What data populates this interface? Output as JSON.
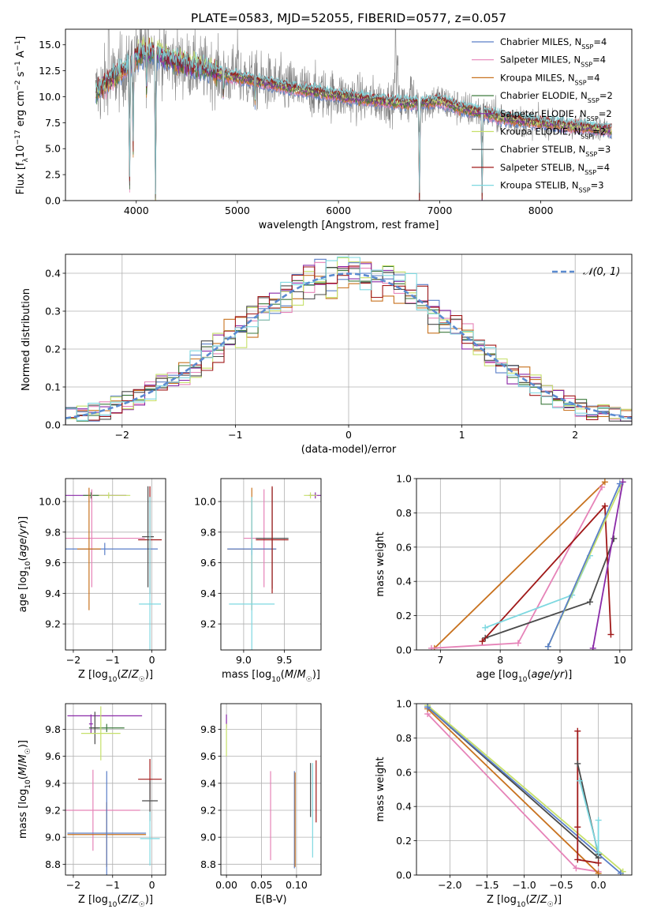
{
  "title": "PLATE=0583, MJD=52055, FIBERID=0577, z=0.057",
  "colors": {
    "chabrier_miles": "#5a7fc8",
    "salpeter_miles": "#e683b8",
    "kroupa_miles": "#c8721f",
    "chabrier_elodie": "#3d7a3d",
    "salpeter_elodie": "#8a2aa8",
    "kroupa_elodie": "#c6e06a",
    "chabrier_stelib": "#4a4a4a",
    "salpeter_stelib": "#a01818",
    "kroupa_stelib": "#7ed8e0",
    "data_spectrum": "#808080",
    "normal_curve": "#5b8bd0",
    "grid": "#b0b0b0"
  },
  "chart_data": [
    {
      "id": "spectrum",
      "type": "line",
      "title": "PLATE=0583, MJD=52055, FIBERID=0577, z=0.057",
      "xlabel": "wavelength [Angstrom, rest frame]",
      "ylabel_parts": [
        "Flux [f",
        "λ",
        "10",
        "−17",
        " erg cm",
        "−2",
        " s",
        "−1",
        " A",
        "−1",
        "]"
      ],
      "xlim": [
        3300,
        8900
      ],
      "ylim": [
        0,
        16.5
      ],
      "xticks": [
        4000,
        5000,
        6000,
        7000,
        8000
      ],
      "yticks": [
        0.0,
        2.5,
        5.0,
        7.5,
        10.0,
        12.5,
        15.0
      ],
      "ytick_labels": [
        "0.0",
        "2.5",
        "5.0",
        "7.5",
        "10.0",
        "12.5",
        "15.0"
      ],
      "grid": false,
      "legend_position": "top-right",
      "legend": [
        {
          "label": "Chabrier MILES, N",
          "sub": "SSP",
          "suffix": "=4",
          "color_key": "chabrier_miles"
        },
        {
          "label": "Salpeter MILES, N",
          "sub": "SSP",
          "suffix": "=4",
          "color_key": "salpeter_miles"
        },
        {
          "label": "Kroupa MILES, N",
          "sub": "SSP",
          "suffix": "=4",
          "color_key": "kroupa_miles"
        },
        {
          "label": "Chabrier ELODIE, N",
          "sub": "SSP",
          "suffix": "=2",
          "color_key": "chabrier_elodie"
        },
        {
          "label": "Salpeter ELODIE, N",
          "sub": "SSP",
          "suffix": "=2",
          "color_key": "salpeter_elodie"
        },
        {
          "label": "Kroupa ELODIE, N",
          "sub": "SSP",
          "suffix": "=2",
          "color_key": "kroupa_elodie"
        },
        {
          "label": "Chabrier STELIB, N",
          "sub": "SSP",
          "suffix": "=3",
          "color_key": "chabrier_stelib"
        },
        {
          "label": "Salpeter STELIB, N",
          "sub": "SSP",
          "suffix": "=4",
          "color_key": "salpeter_stelib"
        },
        {
          "label": "Kroupa STELIB, N",
          "sub": "SSP",
          "suffix": "=3",
          "color_key": "kroupa_stelib"
        }
      ],
      "continuum": {
        "x": [
          3600,
          3700,
          3800,
          3900,
          4000,
          4100,
          4200,
          4300,
          4400,
          4500,
          4600,
          4700,
          4800,
          4900,
          5000,
          5200,
          5400,
          5600,
          5800,
          6000,
          6200,
          6400,
          6600,
          6800,
          7000,
          7200,
          7400,
          7600,
          7800,
          8000,
          8200,
          8400,
          8600,
          8700
        ],
        "y": [
          10.4,
          11.2,
          12.0,
          12.8,
          13.8,
          14.3,
          14.1,
          13.6,
          13.3,
          13.0,
          12.8,
          12.6,
          12.3,
          12.0,
          11.9,
          11.5,
          11.1,
          10.7,
          10.4,
          10.1,
          9.8,
          9.6,
          9.4,
          9.4,
          9.6,
          8.9,
          8.5,
          8.0,
          7.7,
          7.5,
          7.3,
          7.1,
          6.9,
          6.8
        ]
      },
      "absorption_lines": [
        {
          "x": 3934,
          "depth": 12.0
        },
        {
          "x": 3969,
          "depth": 9.0
        },
        {
          "x": 4102,
          "depth": 4.0
        },
        {
          "x": 4190,
          "depth": 14.0
        },
        {
          "x": 4861,
          "depth": 2.0
        },
        {
          "x": 5175,
          "depth": 2.0
        },
        {
          "x": 6800,
          "depth": 9.5
        },
        {
          "x": 7420,
          "depth": 8.5
        }
      ],
      "emission_lines": [
        {
          "x": 3727,
          "height": 6.0
        },
        {
          "x": 5007,
          "height": 4.0
        },
        {
          "x": 6563,
          "height": 9.0
        },
        {
          "x": 6583,
          "height": 5.0
        },
        {
          "x": 6716,
          "height": 3.0
        }
      ],
      "data_range": [
        3600,
        8700
      ],
      "noise_amplitude_blue": 2.6,
      "noise_amplitude_red": 0.7
    },
    {
      "id": "residuals",
      "type": "histogram",
      "xlabel": "(data-model)/error",
      "ylabel": "Normed distribution",
      "xlim": [
        -2.5,
        2.5
      ],
      "ylim": [
        0,
        0.45
      ],
      "xticks": [
        -2,
        -1,
        0,
        1,
        2
      ],
      "xtick_labels": [
        "−2",
        "−1",
        "0",
        "1",
        "2"
      ],
      "yticks": [
        0.0,
        0.1,
        0.2,
        0.3,
        0.4
      ],
      "ytick_labels": [
        "0.0",
        "0.1",
        "0.2",
        "0.3",
        "0.4"
      ],
      "grid": true,
      "legend_position": "top-right",
      "legend_label": "𝒩(0, 1)",
      "bin_width": 0.1
    },
    {
      "id": "age_vs_z",
      "type": "errorbar",
      "xlabel": "Z [log₁₀(Z/Z☉)]",
      "ylabel": "age  [log₁₀(age/yr)]",
      "xlim": [
        -2.2,
        0.35
      ],
      "ylim": [
        9.03,
        10.15
      ],
      "xticks": [
        -2,
        -1,
        0
      ],
      "xtick_labels": [
        "−2",
        "−1",
        "0"
      ],
      "yticks": [
        9.2,
        9.4,
        9.6,
        9.8,
        10.0
      ],
      "ytick_labels": [
        "9.2",
        "9.4",
        "9.6",
        "9.8",
        "10.0"
      ],
      "grid": true,
      "points": [
        {
          "x": -1.53,
          "y": 10.04,
          "xerr": 0.88,
          "yerr": 0.03,
          "color_key": "salpeter_elodie"
        },
        {
          "x": -1.1,
          "y": 10.04,
          "xerr": 0.55,
          "yerr": 0.02,
          "color_key": "kroupa_elodie"
        },
        {
          "x": -1.55,
          "y": 10.04,
          "xerr": 0.2,
          "yerr": 0.02,
          "color_key": "chabrier_elodie"
        },
        {
          "x": -1.53,
          "y": 9.76,
          "xerr": 1.35,
          "yerr": 0.32,
          "color_key": "salpeter_miles"
        },
        {
          "x": -1.2,
          "y": 9.69,
          "xerr": 1.35,
          "yerr": 0.04,
          "color_key": "chabrier_miles"
        },
        {
          "x": -1.6,
          "y": 9.69,
          "xerr": 0.3,
          "yerr": 0.4,
          "color_key": "kroupa_miles"
        },
        {
          "x": -0.05,
          "y": 9.75,
          "xerr": 0.3,
          "yerr": 0.35,
          "color_key": "salpeter_stelib"
        },
        {
          "x": -0.1,
          "y": 9.77,
          "xerr": 0.15,
          "yerr": 0.33,
          "color_key": "chabrier_stelib"
        },
        {
          "x": -0.05,
          "y": 9.33,
          "xerr": 0.28,
          "yerr": 0.7,
          "color_key": "kroupa_stelib"
        }
      ]
    },
    {
      "id": "age_vs_mass",
      "type": "errorbar",
      "xlabel": "mass [log₁₀(M/M☉)]",
      "ylabel": "",
      "xlim": [
        8.72,
        9.95
      ],
      "ylim": [
        9.03,
        10.15
      ],
      "xticks": [
        9.0,
        9.5
      ],
      "xtick_labels": [
        "9.0",
        "9.5"
      ],
      "yticks": [
        9.2,
        9.4,
        9.6,
        9.8,
        10.0
      ],
      "ytick_labels": [
        "9.2",
        "9.4",
        "9.6",
        "9.8",
        "10.0"
      ],
      "grid": true,
      "points": [
        {
          "x": 9.88,
          "y": 10.04,
          "xerr": 0.08,
          "yerr": 0.02,
          "color_key": "salpeter_elodie"
        },
        {
          "x": 9.82,
          "y": 10.04,
          "xerr": 0.08,
          "yerr": 0.02,
          "color_key": "kroupa_elodie"
        },
        {
          "x": 9.25,
          "y": 9.76,
          "xerr": 0.25,
          "yerr": 0.32,
          "color_key": "salpeter_miles"
        },
        {
          "x": 9.1,
          "y": 9.69,
          "xerr": 0.3,
          "yerr": 0.4,
          "color_key": "kroupa_miles"
        },
        {
          "x": 9.1,
          "y": 9.69,
          "xerr": 0.3,
          "yerr": 0.04,
          "color_key": "chabrier_miles"
        },
        {
          "x": 9.35,
          "y": 9.76,
          "xerr": 0.2,
          "yerr": 0.33,
          "color_key": "chabrier_stelib"
        },
        {
          "x": 9.35,
          "y": 9.75,
          "xerr": 0.2,
          "yerr": 0.35,
          "color_key": "salpeter_stelib"
        },
        {
          "x": 9.1,
          "y": 9.33,
          "xerr": 0.28,
          "yerr": 0.7,
          "color_key": "kroupa_stelib"
        }
      ]
    },
    {
      "id": "weight_vs_age",
      "type": "line",
      "xlabel": "age  [log₁₀(age/yr)]",
      "ylabel": "mass weight",
      "xlim": [
        6.6,
        10.2
      ],
      "ylim": [
        0,
        1.0
      ],
      "xticks": [
        7,
        8,
        9,
        10
      ],
      "xtick_labels": [
        "7",
        "8",
        "9",
        "10"
      ],
      "yticks": [
        0.0,
        0.2,
        0.4,
        0.6,
        0.8,
        1.0
      ],
      "ytick_labels": [
        "0.0",
        "0.2",
        "0.4",
        "0.6",
        "0.8",
        "1.0"
      ],
      "grid": true,
      "series": [
        {
          "color_key": "kroupa_miles",
          "x": [
            6.9,
            9.75
          ],
          "y": [
            0.01,
            0.98
          ]
        },
        {
          "color_key": "salpeter_miles",
          "x": [
            6.85,
            8.3,
            9.7
          ],
          "y": [
            0.01,
            0.04,
            0.95
          ]
        },
        {
          "color_key": "chabrier_stelib",
          "x": [
            7.75,
            9.5,
            9.9
          ],
          "y": [
            0.07,
            0.28,
            0.65
          ]
        },
        {
          "color_key": "salpeter_stelib",
          "x": [
            7.7,
            9.75,
            9.85
          ],
          "y": [
            0.05,
            0.84,
            0.09
          ]
        },
        {
          "color_key": "kroupa_stelib",
          "x": [
            7.75,
            9.2,
            9.5
          ],
          "y": [
            0.13,
            0.32,
            0.55
          ]
        },
        {
          "color_key": "kroupa_elodie",
          "x": [
            8.8,
            10.05
          ],
          "y": [
            0.02,
            0.98
          ]
        },
        {
          "color_key": "salpeter_elodie",
          "x": [
            9.55,
            10.05
          ],
          "y": [
            0.01,
            0.98
          ]
        },
        {
          "color_key": "chabrier_miles",
          "x": [
            8.8,
            10.0
          ],
          "y": [
            0.02,
            0.97
          ]
        }
      ]
    },
    {
      "id": "mass_vs_z",
      "type": "errorbar",
      "xlabel": "Z [log₁₀(Z/Z☉)]",
      "ylabel": "mass [log₁₀(M/M☉)]",
      "xlim": [
        -2.2,
        0.35
      ],
      "ylim": [
        8.72,
        9.99
      ],
      "xticks": [
        -2,
        -1,
        0
      ],
      "xtick_labels": [
        "−2",
        "−1",
        "0"
      ],
      "yticks": [
        8.8,
        9.0,
        9.2,
        9.4,
        9.6,
        9.8
      ],
      "ytick_labels": [
        "8.8",
        "9.0",
        "9.2",
        "9.4",
        "9.6",
        "9.8"
      ],
      "grid": true,
      "points": [
        {
          "x": -1.2,
          "y": 9.9,
          "xerr": 0.95,
          "yerr": 0.0,
          "color_key": "salpeter_elodie"
        },
        {
          "x": -1.55,
          "y": 9.84,
          "xerr": 0.05,
          "yerr": 0.07,
          "color_key": "salpeter_elodie"
        },
        {
          "x": -1.15,
          "y": 9.81,
          "xerr": 0.45,
          "yerr": 0.03,
          "color_key": "chabrier_elodie"
        },
        {
          "x": -1.45,
          "y": 9.81,
          "xerr": 0.1,
          "yerr": 0.12,
          "color_key": "chabrier_stelib"
        },
        {
          "x": -1.3,
          "y": 9.77,
          "xerr": 0.5,
          "yerr": 0.2,
          "color_key": "kroupa_elodie"
        },
        {
          "x": -1.5,
          "y": 9.2,
          "xerr": 1.2,
          "yerr": 0.3,
          "color_key": "salpeter_miles"
        },
        {
          "x": -1.15,
          "y": 9.02,
          "xerr": 1.0,
          "yerr": 0.24,
          "color_key": "kroupa_miles"
        },
        {
          "x": -1.15,
          "y": 9.03,
          "xerr": 1.0,
          "yerr": 0.46,
          "color_key": "chabrier_miles"
        },
        {
          "x": -0.05,
          "y": 9.43,
          "xerr": 0.3,
          "yerr": 0.15,
          "color_key": "salpeter_stelib"
        },
        {
          "x": -0.05,
          "y": 9.27,
          "xerr": 0.2,
          "yerr": 0.15,
          "color_key": "chabrier_stelib"
        },
        {
          "x": -0.05,
          "y": 8.99,
          "xerr": 0.25,
          "yerr": 0.2,
          "color_key": "kroupa_stelib"
        }
      ]
    },
    {
      "id": "mass_vs_ebv",
      "type": "errorbar",
      "xlabel": "E(B-V)",
      "ylabel": "",
      "xlim": [
        -0.008,
        0.135
      ],
      "ylim": [
        8.72,
        9.99
      ],
      "xticks": [
        0.0,
        0.05,
        0.1
      ],
      "xtick_labels": [
        "0.00",
        "0.05",
        "0.10"
      ],
      "yticks": [
        8.8,
        9.0,
        9.2,
        9.4,
        9.6,
        9.8
      ],
      "ytick_labels": [
        "8.8",
        "9.0",
        "9.2",
        "9.4",
        "9.6",
        "9.8"
      ],
      "grid": true,
      "points": [
        {
          "x": 0.0,
          "y": 9.86,
          "xerr": 0.0,
          "yerr": 0.05,
          "color_key": "salpeter_elodie"
        },
        {
          "x": 0.0,
          "y": 9.72,
          "xerr": 0.0,
          "yerr": 0.12,
          "color_key": "kroupa_elodie"
        },
        {
          "x": 0.063,
          "y": 9.16,
          "xerr": 0.0,
          "yerr": 0.33,
          "color_key": "salpeter_miles"
        },
        {
          "x": 0.097,
          "y": 9.13,
          "xerr": 0.0,
          "yerr": 0.36,
          "color_key": "chabrier_miles"
        },
        {
          "x": 0.098,
          "y": 9.13,
          "xerr": 0.0,
          "yerr": 0.35,
          "color_key": "kroupa_miles"
        },
        {
          "x": 0.12,
          "y": 9.35,
          "xerr": 0.0,
          "yerr": 0.2,
          "color_key": "chabrier_stelib"
        },
        {
          "x": 0.128,
          "y": 9.34,
          "xerr": 0.0,
          "yerr": 0.23,
          "color_key": "salpeter_stelib"
        },
        {
          "x": 0.123,
          "y": 9.2,
          "xerr": 0.0,
          "yerr": 0.35,
          "color_key": "kroupa_stelib"
        }
      ]
    },
    {
      "id": "weight_vs_z",
      "type": "line",
      "xlabel": "Z [log₁₀(Z/Z☉)]",
      "ylabel": "mass weight",
      "xlim": [
        -2.45,
        0.45
      ],
      "ylim": [
        0,
        1.0
      ],
      "xticks": [
        -2.0,
        -1.5,
        -1.0,
        -0.5,
        0.0
      ],
      "xtick_labels": [
        "−2.0",
        "−1.5",
        "−1.0",
        "−0.5",
        "0.0"
      ],
      "yticks": [
        0.0,
        0.2,
        0.4,
        0.6,
        0.8,
        1.0
      ],
      "ytick_labels": [
        "0.0",
        "0.2",
        "0.4",
        "0.6",
        "0.8",
        "1.0"
      ],
      "grid": true,
      "series": [
        {
          "color_key": "salpeter_miles",
          "x": [
            -2.3,
            -0.3,
            0.0
          ],
          "y": [
            0.94,
            0.04,
            0.02
          ]
        },
        {
          "color_key": "kroupa_miles",
          "x": [
            -2.3,
            0.0
          ],
          "y": [
            0.97,
            0.01
          ]
        },
        {
          "color_key": "chabrier_stelib",
          "x": [
            -2.3,
            0.0
          ],
          "y": [
            0.98,
            0.1
          ]
        },
        {
          "color_key": "kroupa_elodie",
          "x": [
            -2.3,
            0.33
          ],
          "y": [
            0.99,
            0.02
          ]
        },
        {
          "color_key": "chabrier_miles",
          "x": [
            -2.3,
            0.3
          ],
          "y": [
            0.98,
            0.01
          ]
        },
        {
          "color_key": "salpeter_stelib",
          "x": [
            -0.28,
            -0.28,
            -0.28,
            0.0
          ],
          "y": [
            0.84,
            0.28,
            0.09,
            0.07
          ]
        },
        {
          "color_key": "chabrier_stelib",
          "x": [
            -0.28,
            0.0
          ],
          "y": [
            0.65,
            0.12
          ]
        },
        {
          "color_key": "kroupa_stelib",
          "x": [
            -0.25,
            0.0,
            0.0
          ],
          "y": [
            0.55,
            0.13,
            0.32
          ]
        }
      ]
    }
  ]
}
